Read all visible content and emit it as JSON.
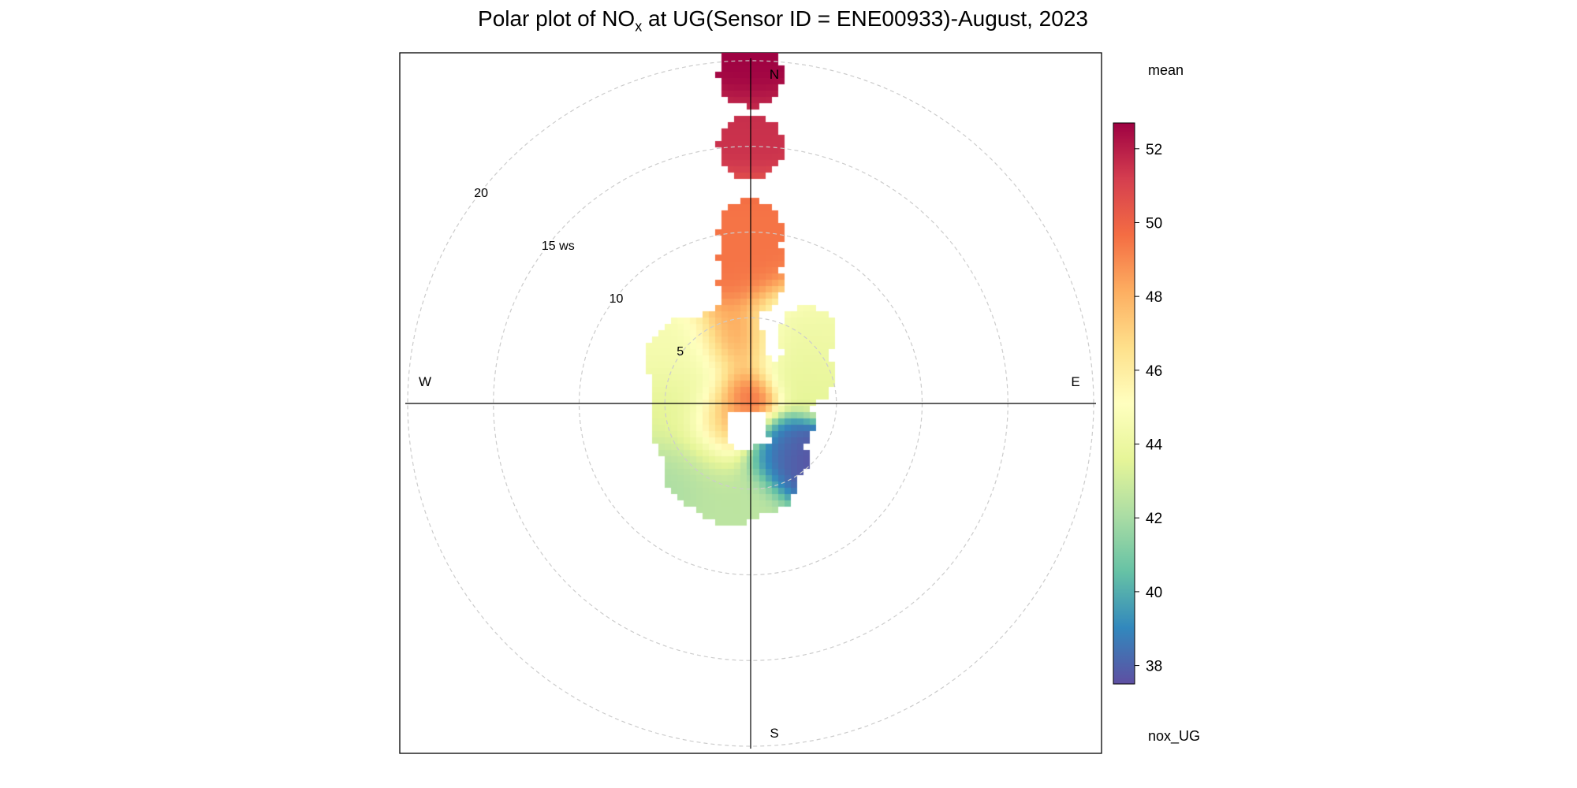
{
  "title": {
    "prefix": "Polar plot of NO",
    "subscript": "x",
    "suffix": " at UG(Sensor ID = ENE00933)-August, 2023"
  },
  "chart_data": {
    "type": "heatmap",
    "subtype": "polar",
    "variable": "nox_UG",
    "statistic": "mean",
    "radial_axis": {
      "name": "ws",
      "max": 20,
      "ticks": [
        5,
        10,
        15,
        20
      ],
      "tick_labels": [
        "5",
        "10",
        "15 ws",
        "20"
      ],
      "ring_style": "dashed",
      "ring_color": "#cccccc"
    },
    "directions": [
      {
        "label": "N",
        "angle_deg": 0
      },
      {
        "label": "E",
        "angle_deg": 90
      },
      {
        "label": "S",
        "angle_deg": 180
      },
      {
        "label": "W",
        "angle_deg": 270
      }
    ],
    "colorbar": {
      "title": "mean",
      "footer": "nox_UG",
      "min": 37.5,
      "max": 52.7,
      "ticks": [
        38,
        40,
        42,
        44,
        46,
        48,
        50,
        52
      ],
      "palette": [
        "#5E4FA2",
        "#3288BD",
        "#66C2A5",
        "#ABDDA4",
        "#E6F598",
        "#FFFFBF",
        "#FEE08B",
        "#FDAE61",
        "#F46D43",
        "#D53E4F",
        "#9E0142"
      ]
    },
    "hotspots": [
      {
        "ws": 0.6,
        "dir_deg": 330,
        "value": 51.0,
        "spread": 0.9
      },
      {
        "ws": 1.7,
        "dir_deg": 235,
        "value": 50.5,
        "spread": 1.1
      },
      {
        "ws": 3.5,
        "dir_deg": 352,
        "value": 49.5,
        "spread": 1.2
      },
      {
        "ws": 3.8,
        "dir_deg": 38,
        "value": 43.5,
        "spread": 1.6
      },
      {
        "ws": 3.5,
        "dir_deg": 300,
        "value": 44.5,
        "spread": 1.8
      },
      {
        "ws": 5.0,
        "dir_deg": 35,
        "value": 44.5,
        "spread": 1.5
      },
      {
        "ws": 2.8,
        "dir_deg": 230,
        "value": 45.0,
        "spread": 1.4
      },
      {
        "ws": 4.2,
        "dir_deg": 145,
        "value": 37.6,
        "spread": 1.0
      },
      {
        "ws": 3.0,
        "dir_deg": 155,
        "value": 38.5,
        "spread": 1.0
      },
      {
        "ws": 5.5,
        "dir_deg": 190,
        "value": 42.5,
        "spread": 1.5
      },
      {
        "ws": 5.0,
        "dir_deg": 225,
        "value": 42.0,
        "spread": 1.3
      },
      {
        "ws": 4.0,
        "dir_deg": 265,
        "value": 43.2,
        "spread": 1.3
      },
      {
        "ws": 9.0,
        "dir_deg": 0,
        "value": 49.5,
        "spread": 2.0
      },
      {
        "ws": 16.0,
        "dir_deg": 0,
        "value": 51.5,
        "spread": 1.5
      },
      {
        "ws": 19.5,
        "dir_deg": 0,
        "value": 52.7,
        "spread": 1.2
      }
    ],
    "observed_regions": [
      {
        "ws": 1.5,
        "dir_deg": 340,
        "r": 2.0
      },
      {
        "ws": 3.5,
        "dir_deg": 335,
        "r": 2.5
      },
      {
        "ws": 4.5,
        "dir_deg": 305,
        "r": 2.4
      },
      {
        "ws": 3.5,
        "dir_deg": 275,
        "r": 2.4
      },
      {
        "ws": 3.8,
        "dir_deg": 245,
        "r": 2.2
      },
      {
        "ws": 4.8,
        "dir_deg": 218,
        "r": 2.2
      },
      {
        "ws": 5.0,
        "dir_deg": 193,
        "r": 2.3
      },
      {
        "ws": 4.5,
        "dir_deg": 170,
        "r": 2.0
      },
      {
        "ws": 3.8,
        "dir_deg": 148,
        "r": 1.4
      },
      {
        "ws": 2.5,
        "dir_deg": 115,
        "r": 1.5
      },
      {
        "ws": 3.5,
        "dir_deg": 62,
        "r": 1.8
      },
      {
        "ws": 5.2,
        "dir_deg": 40,
        "r": 1.7
      },
      {
        "ws": 1.5,
        "dir_deg": 60,
        "r": 1.5
      },
      {
        "ws": 7.0,
        "dir_deg": 0,
        "r": 1.9
      },
      {
        "ws": 8.5,
        "dir_deg": 0,
        "r": 1.9
      },
      {
        "ws": 10.0,
        "dir_deg": 0,
        "r": 1.9
      },
      {
        "ws": 15.0,
        "dir_deg": 0,
        "r": 1.9
      },
      {
        "ws": 19.2,
        "dir_deg": 0,
        "r": 1.9
      }
    ]
  }
}
